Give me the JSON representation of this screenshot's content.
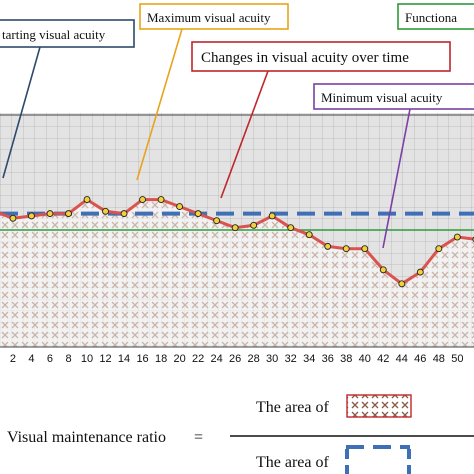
{
  "callouts": {
    "starting": "tarting visual acuity",
    "maximum": "Maximum visual acuity",
    "functional": "Functiona",
    "changes": "Changes in visual acuity over time",
    "minimum": "Minimum visual acuity"
  },
  "formula": {
    "lhs": "Visual maintenance ratio",
    "equals": "=",
    "numerator": "The area of",
    "denominator": "The area of"
  },
  "colors": {
    "curve": "#d9534f",
    "dashed_line": "#3f6fb5",
    "functional_line": "#2e9a3a",
    "callout_starting": "#2d4a6b",
    "callout_maximum": "#e8a41c",
    "callout_functional": "#2e9a3a",
    "callout_changes": "#c0262b",
    "callout_minimum": "#7b3fa6",
    "hatch": "#8a5a44",
    "plot_background": "#e3e3e3"
  },
  "chart_data": {
    "type": "line",
    "x": [
      0,
      2,
      4,
      6,
      8,
      10,
      12,
      14,
      16,
      18,
      20,
      22,
      24,
      26,
      28,
      30,
      32,
      34,
      36,
      38,
      40,
      42,
      44,
      46,
      48,
      50,
      52
    ],
    "values": [
      0.58,
      0.55,
      0.56,
      0.57,
      0.57,
      0.63,
      0.58,
      0.57,
      0.63,
      0.63,
      0.6,
      0.57,
      0.54,
      0.51,
      0.52,
      0.56,
      0.51,
      0.48,
      0.43,
      0.42,
      0.42,
      0.33,
      0.27,
      0.32,
      0.42,
      0.47,
      0.46
    ],
    "x_ticks": [
      "2",
      "4",
      "6",
      "8",
      "10",
      "12",
      "14",
      "16",
      "18",
      "20",
      "22",
      "24",
      "26",
      "28",
      "30",
      "32",
      "34",
      "36",
      "38",
      "40",
      "42",
      "44",
      "46",
      "48",
      "50"
    ],
    "x_tick_values": [
      2,
      4,
      6,
      8,
      10,
      12,
      14,
      16,
      18,
      20,
      22,
      24,
      26,
      28,
      30,
      32,
      34,
      36,
      38,
      40,
      42,
      44,
      46,
      48,
      50
    ],
    "xlim": [
      0.6,
      51.8
    ],
    "ylim": [
      0,
      1
    ],
    "starting_level": 0.57,
    "functional_level": 0.5,
    "grid": true
  }
}
